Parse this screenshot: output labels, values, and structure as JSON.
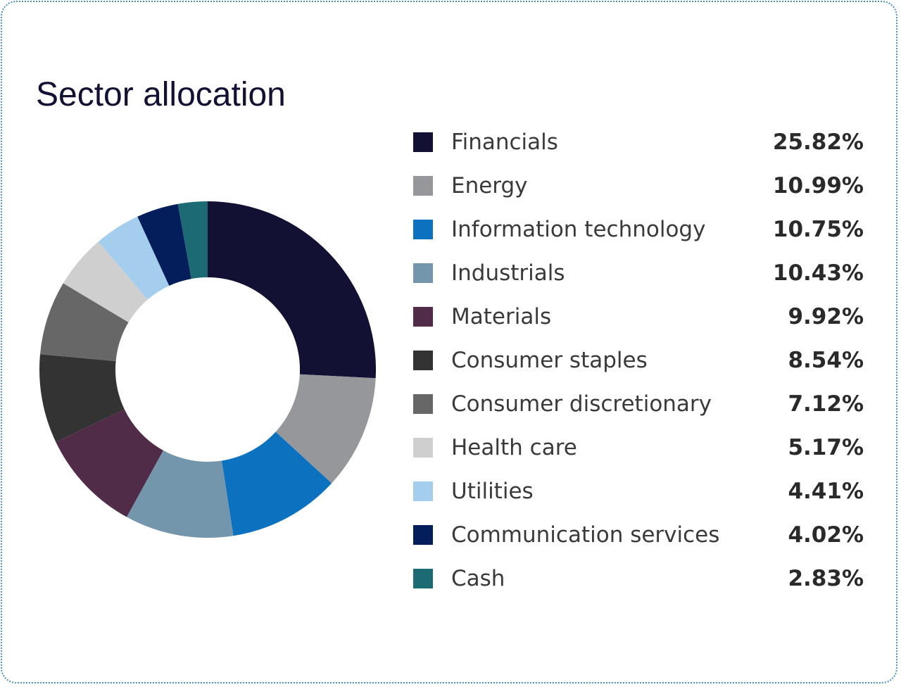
{
  "chart_data": {
    "type": "pie",
    "title": "Sector allocation",
    "categories": [
      "Financials",
      "Energy",
      "Information technology",
      "Industrials",
      "Materials",
      "Consumer staples",
      "Consumer discretionary",
      "Health care",
      "Utilities",
      "Communication services",
      "Cash"
    ],
    "values": [
      25.82,
      10.99,
      10.75,
      10.43,
      9.92,
      8.54,
      7.12,
      5.17,
      4.41,
      4.02,
      2.83
    ],
    "value_labels": [
      "25.82%",
      "10.99%",
      "10.75%",
      "10.43%",
      "9.92%",
      "8.54%",
      "7.12%",
      "5.17%",
      "4.41%",
      "4.02%",
      "2.83%"
    ],
    "colors": [
      "#121033",
      "#96979a",
      "#0c72c0",
      "#7496ac",
      "#512c48",
      "#333333",
      "#676767",
      "#cfcfcf",
      "#a4cdee",
      "#041e5c",
      "#1c6a74"
    ],
    "legend_position": "right"
  }
}
